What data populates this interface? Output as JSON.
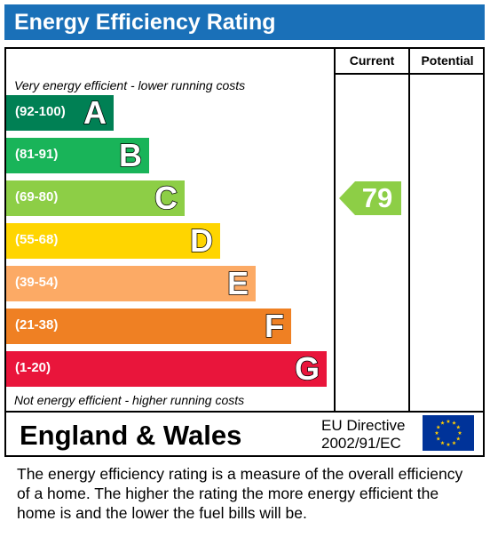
{
  "header": {
    "title": "Energy Efficiency Rating"
  },
  "columns": {
    "current": "Current",
    "potential": "Potential"
  },
  "notes": {
    "top": "Very energy efficient - lower running costs",
    "bottom": "Not energy efficient - higher running costs"
  },
  "chart_data": {
    "type": "bar",
    "categories": [
      "A",
      "B",
      "C",
      "D",
      "E",
      "F",
      "G"
    ],
    "ranges": [
      "(92-100)",
      "(81-91)",
      "(69-80)",
      "(55-68)",
      "(39-54)",
      "(21-38)",
      "(1-20)"
    ],
    "colors": [
      "#008054",
      "#19b459",
      "#8dce46",
      "#ffd500",
      "#fcaa65",
      "#ef8023",
      "#e9153b"
    ],
    "current": {
      "value": 79,
      "band": "C",
      "color": "#8dce46"
    },
    "potential": null
  },
  "footer": {
    "region": "England & Wales",
    "directive_line1": "EU Directive",
    "directive_line2": "2002/91/EC"
  },
  "description": "The energy efficiency rating is a measure of the overall efficiency of a home.  The higher the rating the more energy efficient the home is and the lower the fuel bills will be."
}
